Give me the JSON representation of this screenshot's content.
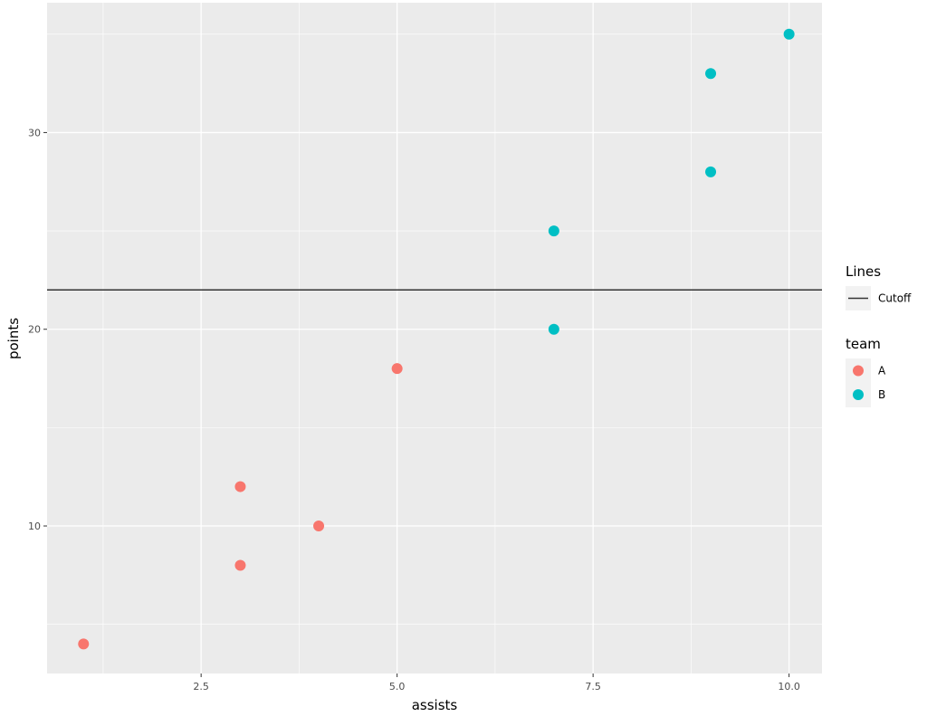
{
  "chart_data": {
    "type": "scatter",
    "title": "",
    "xlabel": "assists",
    "ylabel": "points",
    "xlim": [
      0.535,
      10.42
    ],
    "ylim": [
      2.5,
      36.6
    ],
    "x_ticks": [
      2.5,
      5.0,
      7.5,
      10.0
    ],
    "x_tick_labels": [
      "2.5",
      "5.0",
      "7.5",
      "10.0"
    ],
    "y_ticks": [
      10,
      20,
      30
    ],
    "y_tick_labels": [
      "10",
      "20",
      "30"
    ],
    "grid": true,
    "legend_position": "right",
    "series": [
      {
        "name": "A",
        "color": "#F8766D",
        "points": [
          [
            1,
            4
          ],
          [
            3,
            12
          ],
          [
            3,
            8
          ],
          [
            4,
            10
          ],
          [
            5,
            18
          ]
        ]
      },
      {
        "name": "B",
        "color": "#00BFC4",
        "points": [
          [
            7,
            25
          ],
          [
            7,
            20
          ],
          [
            9,
            33
          ],
          [
            9,
            28
          ],
          [
            10,
            35
          ]
        ]
      }
    ],
    "hlines": [
      {
        "name": "Cutoff",
        "y": 22,
        "color": "#333333"
      }
    ],
    "legends": [
      {
        "title": "Lines",
        "entries": [
          {
            "label": "Cutoff",
            "type": "line",
            "color": "#333333"
          }
        ]
      },
      {
        "title": "team",
        "entries": [
          {
            "label": "A",
            "type": "point",
            "color": "#F8766D"
          },
          {
            "label": "B",
            "type": "point",
            "color": "#00BFC4"
          }
        ]
      }
    ]
  }
}
